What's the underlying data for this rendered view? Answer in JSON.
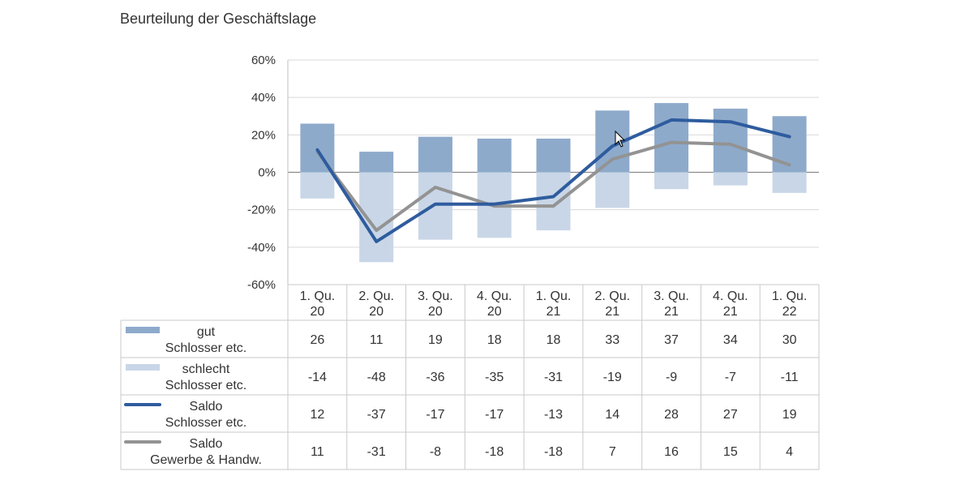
{
  "title": "Beurteilung der Geschäftslage",
  "chart_data": {
    "type": "bar",
    "title": "Beurteilung der Geschäftslage",
    "categories": [
      [
        "1. Qu.",
        "20"
      ],
      [
        "2. Qu.",
        "20"
      ],
      [
        "3. Qu.",
        "20"
      ],
      [
        "4. Qu.",
        "20"
      ],
      [
        "1. Qu.",
        "21"
      ],
      [
        "2. Qu.",
        "21"
      ],
      [
        "3. Qu.",
        "21"
      ],
      [
        "4. Qu.",
        "21"
      ],
      [
        "1. Qu.",
        "22"
      ]
    ],
    "ylim": [
      -60,
      60
    ],
    "yticks": [
      60,
      40,
      20,
      0,
      -20,
      -40,
      -60
    ],
    "ytick_labels": [
      "60%",
      "40%",
      "20%",
      "0%",
      "-20%",
      "-40%",
      "-60%"
    ],
    "grid": true,
    "series": [
      {
        "name_lines": [
          "gut",
          "Schlosser etc."
        ],
        "kind": "bar",
        "color": "#8eaacb",
        "values": [
          26,
          11,
          19,
          18,
          18,
          33,
          37,
          34,
          30
        ]
      },
      {
        "name_lines": [
          "schlecht",
          "Schlosser etc."
        ],
        "kind": "bar",
        "color": "#c9d6e7",
        "values": [
          -14,
          -48,
          -36,
          -35,
          -31,
          -19,
          -9,
          -7,
          -11
        ]
      },
      {
        "name_lines": [
          "Saldo",
          "Schlosser etc."
        ],
        "kind": "line",
        "color": "#2e5c9e",
        "values": [
          12,
          -37,
          -17,
          -17,
          -13,
          14,
          28,
          27,
          19
        ]
      },
      {
        "name_lines": [
          "Saldo",
          "Gewerbe & Handw."
        ],
        "kind": "line",
        "color": "#939393",
        "values": [
          11,
          -31,
          -8,
          -18,
          -18,
          7,
          16,
          15,
          4
        ]
      }
    ]
  }
}
